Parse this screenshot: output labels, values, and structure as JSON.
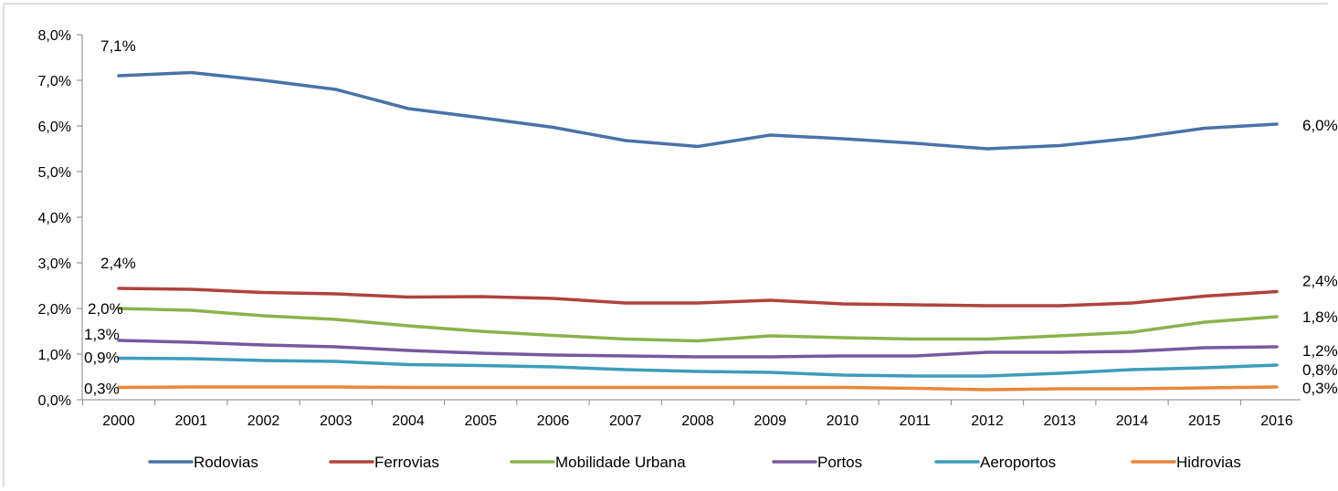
{
  "chart_data": {
    "type": "line",
    "title": "",
    "xlabel": "",
    "ylabel": "",
    "ylim": [
      0,
      8
    ],
    "y_ticks": [
      "0,0%",
      "1,0%",
      "2,0%",
      "3,0%",
      "4,0%",
      "5,0%",
      "6,0%",
      "7,0%",
      "8,0%"
    ],
    "x": [
      "2000",
      "2001",
      "2002",
      "2003",
      "2004",
      "2005",
      "2006",
      "2007",
      "2008",
      "2009",
      "2010",
      "2011",
      "2012",
      "2013",
      "2014",
      "2015",
      "2016"
    ],
    "grid": false,
    "legend_position": "bottom",
    "series": [
      {
        "name": "Rodovias",
        "color": "#4a72a8",
        "values": [
          7.1,
          7.17,
          7.0,
          6.8,
          6.38,
          6.18,
          5.97,
          5.68,
          5.55,
          5.8,
          5.72,
          5.62,
          5.5,
          5.57,
          5.73,
          5.95,
          6.04
        ],
        "start_label": "7,1%",
        "end_label": "6,0%"
      },
      {
        "name": "Ferrovias",
        "color": "#b0423d",
        "values": [
          2.44,
          2.42,
          2.35,
          2.32,
          2.25,
          2.26,
          2.22,
          2.12,
          2.12,
          2.18,
          2.1,
          2.08,
          2.06,
          2.06,
          2.12,
          2.27,
          2.37
        ],
        "start_label": "2,4%",
        "end_label": "2,4%"
      },
      {
        "name": "Mobilidade Urbana",
        "color": "#8ab34c",
        "values": [
          2.0,
          1.96,
          1.84,
          1.76,
          1.62,
          1.5,
          1.41,
          1.33,
          1.29,
          1.4,
          1.36,
          1.33,
          1.33,
          1.4,
          1.48,
          1.7,
          1.82
        ],
        "start_label": "2,0%",
        "end_label": "1,8%"
      },
      {
        "name": "Portos",
        "color": "#7658a0",
        "values": [
          1.3,
          1.26,
          1.2,
          1.16,
          1.08,
          1.02,
          0.98,
          0.96,
          0.94,
          0.94,
          0.96,
          0.96,
          1.04,
          1.04,
          1.06,
          1.14,
          1.16
        ],
        "start_label": "1,3%",
        "end_label": "1,2%"
      },
      {
        "name": "Aeroportos",
        "color": "#3c9dbb",
        "values": [
          0.91,
          0.9,
          0.86,
          0.84,
          0.77,
          0.75,
          0.72,
          0.66,
          0.62,
          0.6,
          0.54,
          0.52,
          0.52,
          0.58,
          0.66,
          0.7,
          0.76
        ],
        "start_label": "0,9%",
        "end_label": "0,8%"
      },
      {
        "name": "Hidrovias",
        "color": "#e8883a",
        "values": [
          0.27,
          0.28,
          0.28,
          0.28,
          0.27,
          0.27,
          0.27,
          0.27,
          0.27,
          0.27,
          0.27,
          0.25,
          0.22,
          0.24,
          0.24,
          0.26,
          0.28
        ],
        "start_label": "0,3%",
        "end_label": "0,3%"
      }
    ]
  }
}
